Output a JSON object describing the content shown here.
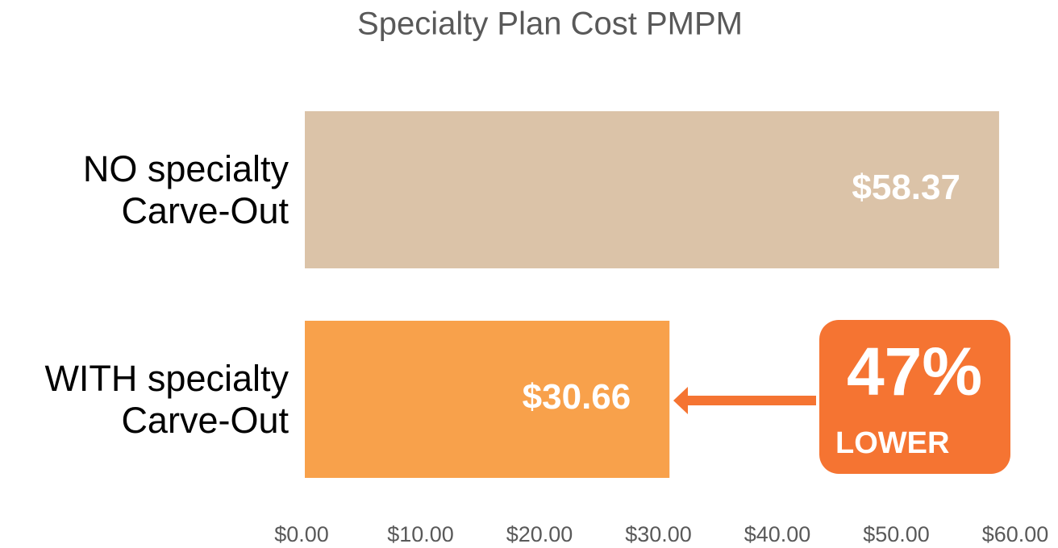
{
  "chart_data": {
    "type": "barh",
    "title": "Specialty Plan Cost PMPM",
    "categories": [
      "NO specialty Carve-Out",
      "WITH specialty Carve-Out"
    ],
    "values": [
      58.37,
      30.66
    ],
    "value_labels": [
      "$58.37",
      "$30.66"
    ],
    "colors": [
      "#dbc3a8",
      "#f8a14b"
    ],
    "xlim": [
      0,
      60
    ],
    "xticks": [
      {
        "value": 0,
        "label": "$0.00"
      },
      {
        "value": 10,
        "label": "$10.00"
      },
      {
        "value": 20,
        "label": "$20.00"
      },
      {
        "value": 30,
        "label": "$30.00"
      },
      {
        "value": 40,
        "label": "$40.00"
      },
      {
        "value": 50,
        "label": "$50.00"
      },
      {
        "value": 60,
        "label": "$60.00"
      }
    ],
    "grid": false,
    "annotation": {
      "headline": "47%",
      "text": "LOWER",
      "color": "#f57432"
    }
  }
}
